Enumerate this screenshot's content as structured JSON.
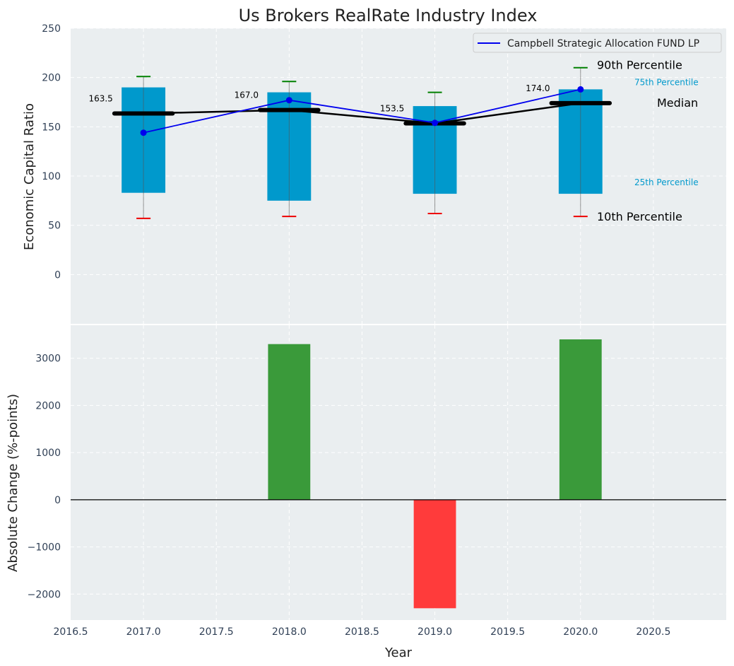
{
  "chart_data": [
    {
      "type": "box",
      "title": "Us Brokers RealRate Industry Index",
      "xlabel": "",
      "ylabel": "Economic Capital Ratio",
      "xlim": [
        2016.5,
        2021.0
      ],
      "ylim": [
        -50,
        250
      ],
      "yticks": [
        0,
        50,
        100,
        150,
        200,
        250
      ],
      "grid": true,
      "legend": {
        "position": "top-right",
        "entries": [
          "Campbell Strategic Allocation FUND LP"
        ]
      },
      "colors": {
        "box": "#0099cc",
        "fund": "#0000ee",
        "median": "#000000",
        "p90": "#008000",
        "p10": "#ee0000",
        "background": "#eaeef0"
      },
      "years": [
        2017,
        2018,
        2019,
        2020
      ],
      "p10": [
        57,
        59,
        62,
        59
      ],
      "p25": [
        83,
        75,
        82,
        82
      ],
      "median": [
        163.5,
        167.0,
        153.5,
        174.0
      ],
      "p75": [
        190,
        185,
        171,
        188
      ],
      "p90": [
        201,
        196,
        185,
        210
      ],
      "median_labels": [
        "163.5",
        "167.0",
        "153.5",
        "174.0"
      ],
      "series": [
        {
          "name": "Campbell Strategic Allocation FUND LP",
          "values": [
            144,
            177,
            154,
            188
          ]
        }
      ],
      "annotations": {
        "p90": "90th Percentile",
        "p75": "75th Percentile",
        "median": "Median",
        "p25": "25th Percentile",
        "p10": "10th Percentile"
      }
    },
    {
      "type": "bar",
      "xlabel": "Year",
      "ylabel": "Absolute Change (%-points)",
      "xlim": [
        2016.5,
        2021.0
      ],
      "xticks": [
        "2016.5",
        "2017.0",
        "2017.5",
        "2018.0",
        "2018.5",
        "2019.0",
        "2019.5",
        "2020.0",
        "2020.5"
      ],
      "yticks": [
        -2000,
        -1000,
        0,
        1000,
        2000,
        3000
      ],
      "grid": true,
      "colors": {
        "positive": "#3a9a3a",
        "negative": "#ff3b3b"
      },
      "x": [
        2017,
        2018,
        2019,
        2020
      ],
      "values": [
        0,
        3300,
        -2300,
        3400
      ]
    }
  ]
}
